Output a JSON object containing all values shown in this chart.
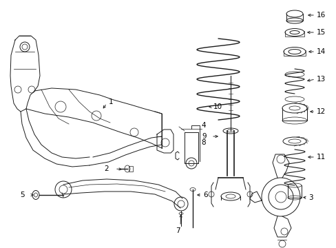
{
  "bg_color": "#ffffff",
  "line_color": "#1a1a1a",
  "fig_width": 4.89,
  "fig_height": 3.6,
  "dpi": 100,
  "label_fontsize": 7.5,
  "lw_main": 0.7,
  "lw_thin": 0.5,
  "lw_thick": 1.0
}
